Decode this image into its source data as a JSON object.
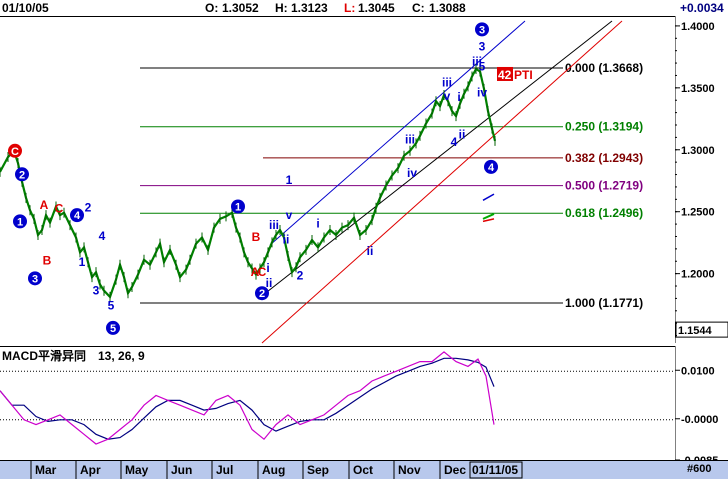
{
  "header": {
    "date": "01/10/05",
    "open_label": "O:",
    "open": "1.3052",
    "high_label": "H:",
    "high": "1.3123",
    "low_label": "L:",
    "low": "1.3045",
    "close_label": "C:",
    "close": "1.3088",
    "change": "+0.0034"
  },
  "macd": {
    "title": "MACD平滑异同",
    "params": "13, 26, 9",
    "ticks": [
      "0.0100",
      "-0.0000",
      "-0.0085"
    ]
  },
  "footer": {
    "months": [
      "Mar",
      "Apr",
      "May",
      "Jun",
      "Jul",
      "Aug",
      "Sep",
      "Oct",
      "Nov",
      "Dec"
    ],
    "cursor_date": "01/11/05",
    "bars": "#600"
  },
  "chart_data": {
    "type": "candlestick",
    "price_ticks": [
      "1.4000",
      "1.3500",
      "1.3000",
      "1.2500",
      "1.2000",
      "1.1544"
    ],
    "price_range": [
      1.144,
      1.408
    ],
    "last_price": "1.1544",
    "fib_levels": [
      {
        "label": "0.000 (1.3668)",
        "value": 1.3668,
        "color": "#000000"
      },
      {
        "label": "0.250 (1.3194)",
        "value": 1.3194,
        "color": "#008000"
      },
      {
        "label": "0.382 (1.2943)",
        "value": 1.2943,
        "color": "#800000"
      },
      {
        "label": "0.500 (1.2719)",
        "value": 1.2719,
        "color": "#800080"
      },
      {
        "label": "0.618 (1.2496)",
        "value": 1.2496,
        "color": "#008000"
      },
      {
        "label": "1.000 (1.1771)",
        "value": 1.1771,
        "color": "#000000"
      }
    ],
    "pti_label": "42",
    "pti_text": "PTI",
    "wave_labels": {
      "major": [
        "C",
        "2",
        "1",
        "4",
        "3",
        "5",
        "1",
        "2",
        "3",
        "4"
      ],
      "minor": [
        "A",
        "C",
        "B",
        "2",
        "4",
        "3",
        "5",
        "1",
        "B",
        "A",
        "C",
        "iii",
        "v",
        "ii",
        "i",
        "ii",
        "2",
        "1",
        "i",
        "ii",
        "iii",
        "iv",
        "iii",
        "v",
        "3",
        "i",
        "ii",
        "4",
        "iii",
        "iv",
        "5"
      ]
    }
  }
}
